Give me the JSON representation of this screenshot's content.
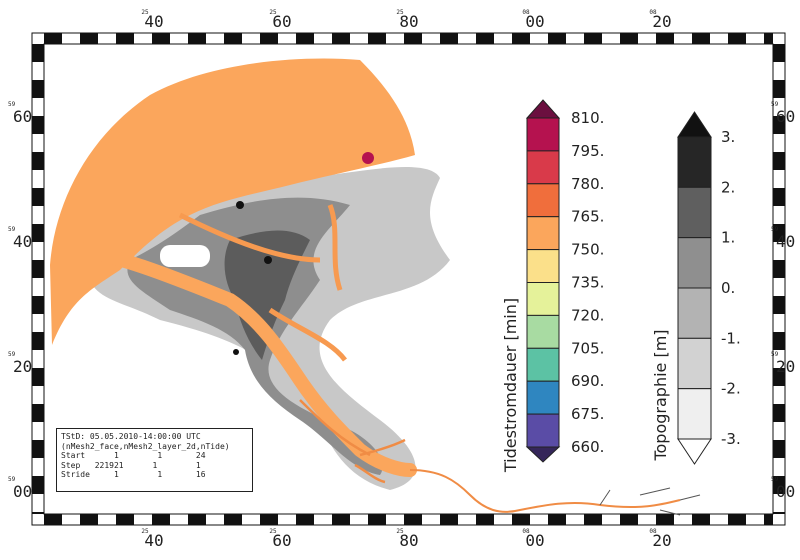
{
  "map": {
    "info_box": {
      "title": "TStD: 05.05.2010-14:00:00 UTC",
      "variable": "(nMesh2_face,nMesh2_layer_2d,nTide)",
      "rows": [
        {
          "label": "Start",
          "values": "1        1       24"
        },
        {
          "label": "Step",
          "values": "221921      1        1"
        },
        {
          "label": "Stride",
          "values": "1        1       16"
        }
      ]
    },
    "axis_top": [
      {
        "major": "40",
        "minor": "25"
      },
      {
        "major": "60",
        "minor": "25"
      },
      {
        "major": "80",
        "minor": "25"
      },
      {
        "major": "00",
        "minor": "08"
      },
      {
        "major": "20",
        "minor": "08"
      }
    ],
    "axis_bottom": [
      {
        "major": "40",
        "minor": "25"
      },
      {
        "major": "60",
        "minor": "25"
      },
      {
        "major": "80",
        "minor": "25"
      },
      {
        "major": "00",
        "minor": "08"
      },
      {
        "major": "20",
        "minor": "08"
      }
    ],
    "axis_left": [
      {
        "major": "60",
        "minor": "59"
      },
      {
        "major": "40",
        "minor": "59"
      },
      {
        "major": "20",
        "minor": "59"
      },
      {
        "major": "00",
        "minor": "59"
      }
    ],
    "axis_right": [
      {
        "major": "60",
        "minor": "59"
      },
      {
        "major": "40",
        "minor": "59"
      },
      {
        "major": "20",
        "minor": "59"
      },
      {
        "major": "00",
        "minor": "59"
      }
    ],
    "colorbar_tide": {
      "title": "Tidestromdauer [min]",
      "labels": [
        "810.",
        "795.",
        "780.",
        "765.",
        "750.",
        "735.",
        "720.",
        "705.",
        "690.",
        "675.",
        "660."
      ],
      "colors": [
        "#6b0f3f",
        "#b5124f",
        "#d93a4a",
        "#f06e3c",
        "#fba65c",
        "#fbe08a",
        "#e5f29a",
        "#a8dba2",
        "#5cc2a4",
        "#2f86c0",
        "#5a4ca6",
        "#35265a"
      ]
    },
    "colorbar_topo": {
      "title": "Topographie [m]",
      "labels": [
        "3.",
        "2.",
        "1.",
        "0.",
        "-1.",
        "-2.",
        "-3."
      ],
      "colors": [
        "#111111",
        "#262626",
        "#5f5f5f",
        "#8f8f8f",
        "#b3b3b3",
        "#d2d2d2",
        "#efefef",
        "#ffffff"
      ]
    }
  }
}
